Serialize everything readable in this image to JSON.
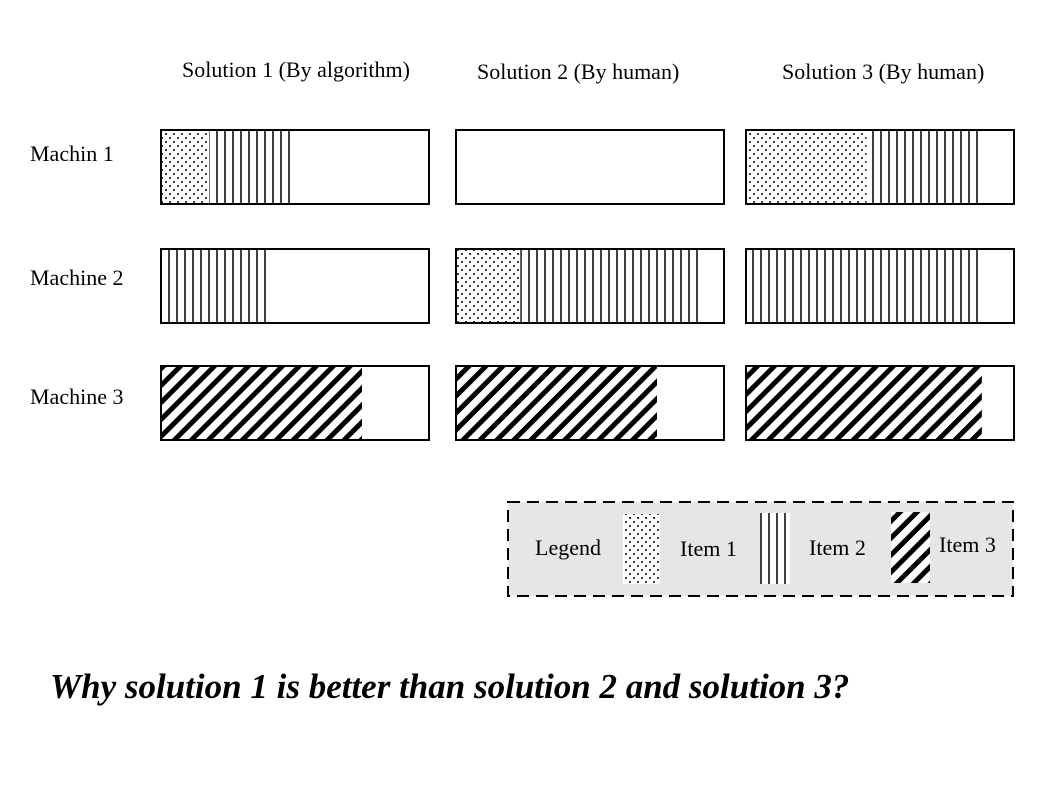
{
  "columns": [
    "Solution 1 (By algorithm)",
    "Solution 2 (By human)",
    "Solution 3 (By human)"
  ],
  "machines": [
    "Machin 1",
    "Machine 2",
    "Machine 3"
  ],
  "legend": {
    "title": "Legend",
    "items": [
      {
        "label": "Item 1",
        "pattern": "dots"
      },
      {
        "label": "Item 2",
        "pattern": "vertical-lines"
      },
      {
        "label": "Item 3",
        "pattern": "diagonal-hatch"
      }
    ]
  },
  "question": "Why solution 1 is better than solution 2 and solution 3?",
  "assignment": [
    {
      "machine": "Machin 1",
      "solution": "Solution 1 (By algorithm)",
      "segments": [
        {
          "item": "Item 1",
          "fraction": 0.18
        },
        {
          "item": "Item 2",
          "fraction": 0.31
        }
      ]
    },
    {
      "machine": "Machin 1",
      "solution": "Solution 2 (By human)",
      "segments": []
    },
    {
      "machine": "Machin 1",
      "solution": "Solution 3 (By human)",
      "segments": [
        {
          "item": "Item 1",
          "fraction": 0.45
        },
        {
          "item": "Item 2",
          "fraction": 0.42
        }
      ]
    },
    {
      "machine": "Machine 2",
      "solution": "Solution 1 (By algorithm)",
      "segments": [
        {
          "item": "Item 2",
          "fraction": 0.41
        }
      ]
    },
    {
      "machine": "Machine 2",
      "solution": "Solution 2 (By human)",
      "segments": [
        {
          "item": "Item 1",
          "fraction": 0.24
        },
        {
          "item": "Item 2",
          "fraction": 0.67
        }
      ]
    },
    {
      "machine": "Machine 2",
      "solution": "Solution 3 (By human)",
      "segments": [
        {
          "item": "Item 2",
          "fraction": 0.88
        }
      ]
    },
    {
      "machine": "Machine 3",
      "solution": "Solution 1 (By algorithm)",
      "segments": [
        {
          "item": "Item 3",
          "fraction": 0.75
        }
      ]
    },
    {
      "machine": "Machine 3",
      "solution": "Solution 2 (By human)",
      "segments": [
        {
          "item": "Item 3",
          "fraction": 0.75
        }
      ]
    },
    {
      "machine": "Machine 3",
      "solution": "Solution 3 (By human)",
      "segments": [
        {
          "item": "Item 3",
          "fraction": 0.88
        }
      ]
    }
  ]
}
